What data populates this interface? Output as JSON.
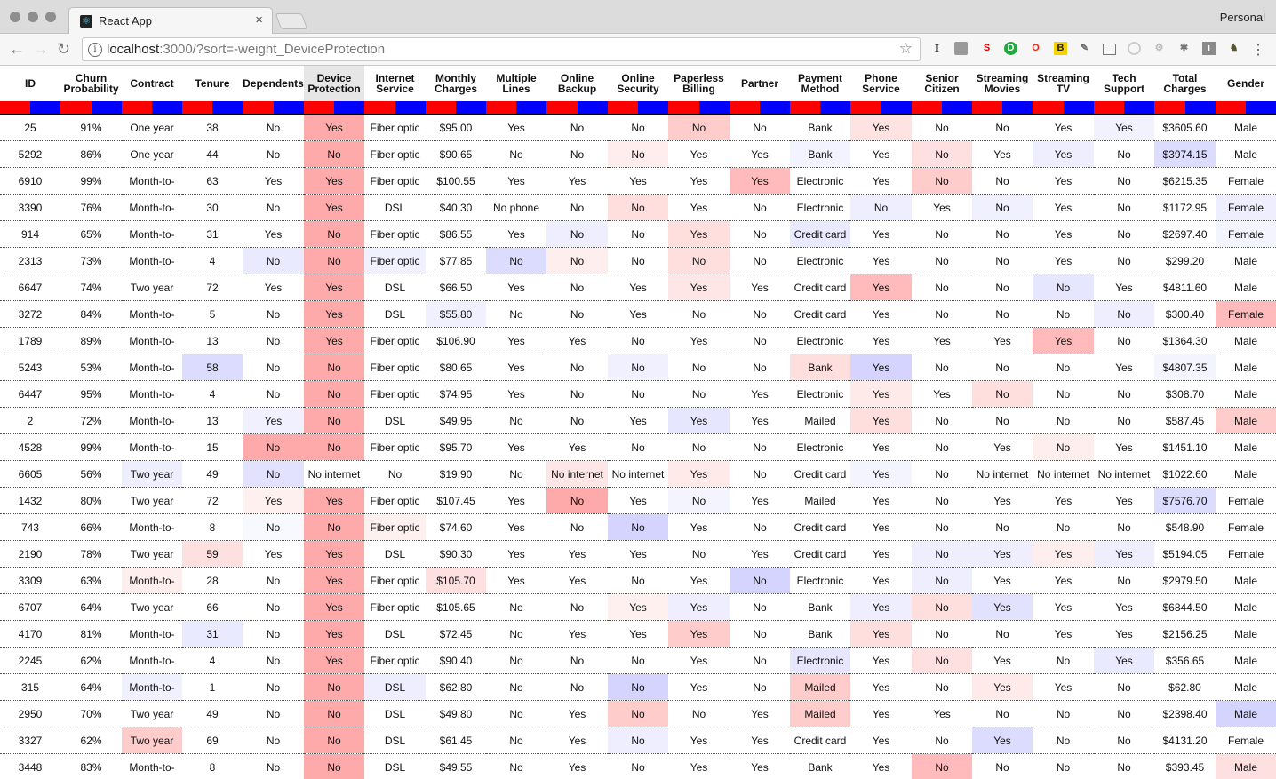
{
  "browser": {
    "tab_title": "React App",
    "profile_label": "Personal",
    "url_host": "localhost",
    "url_rest": ":3000/?sort=-weight_DeviceProtection",
    "colors": {
      "tab_bg": "#f6f6f6",
      "tabbar_bg": "#dcdcdc"
    }
  },
  "table": {
    "sorted_column": "Device Protection",
    "colorbar_colors": {
      "red": "#ff0000",
      "blue": "#0000ff"
    },
    "columns": [
      "ID",
      "Churn Probability",
      "Contract",
      "Tenure",
      "Dependents",
      "Device Protection",
      "Internet Service",
      "Monthly Charges",
      "Multiple Lines",
      "Online Backup",
      "Online Security",
      "Paperless Billing",
      "Partner",
      "Payment Method",
      "Phone Service",
      "Senior Citizen",
      "Streaming Movies",
      "Streaming TV",
      "Tech Support",
      "Total Charges",
      "Gender"
    ],
    "rows": [
      [
        "25",
        "91%",
        "One year",
        "38",
        "No",
        "Yes",
        "Fiber optic",
        "$95.00",
        "Yes",
        "No",
        "No",
        "No",
        "No",
        "Bank",
        "Yes",
        "No",
        "No",
        "Yes",
        "Yes",
        "$3605.60",
        "Male"
      ],
      [
        "5292",
        "86%",
        "One year",
        "44",
        "No",
        "No",
        "Fiber optic",
        "$90.65",
        "No",
        "No",
        "No",
        "Yes",
        "Yes",
        "Bank",
        "Yes",
        "No",
        "Yes",
        "Yes",
        "No",
        "$3974.15",
        "Male"
      ],
      [
        "6910",
        "99%",
        "Month-to-",
        "63",
        "Yes",
        "Yes",
        "Fiber optic",
        "$100.55",
        "Yes",
        "Yes",
        "Yes",
        "Yes",
        "Yes",
        "Electronic",
        "Yes",
        "No",
        "No",
        "Yes",
        "No",
        "$6215.35",
        "Female"
      ],
      [
        "3390",
        "76%",
        "Month-to-",
        "30",
        "No",
        "Yes",
        "DSL",
        "$40.30",
        "No phone",
        "No",
        "No",
        "Yes",
        "No",
        "Electronic",
        "No",
        "Yes",
        "No",
        "Yes",
        "No",
        "$1172.95",
        "Female"
      ],
      [
        "914",
        "65%",
        "Month-to-",
        "31",
        "Yes",
        "No",
        "Fiber optic",
        "$86.55",
        "Yes",
        "No",
        "No",
        "Yes",
        "No",
        "Credit card",
        "Yes",
        "No",
        "No",
        "Yes",
        "No",
        "$2697.40",
        "Female"
      ],
      [
        "2313",
        "73%",
        "Month-to-",
        "4",
        "No",
        "No",
        "Fiber optic",
        "$77.85",
        "No",
        "No",
        "No",
        "No",
        "No",
        "Electronic",
        "Yes",
        "No",
        "No",
        "Yes",
        "No",
        "$299.20",
        "Male"
      ],
      [
        "6647",
        "74%",
        "Two year",
        "72",
        "Yes",
        "Yes",
        "DSL",
        "$66.50",
        "Yes",
        "No",
        "Yes",
        "Yes",
        "Yes",
        "Credit card",
        "Yes",
        "No",
        "No",
        "No",
        "Yes",
        "$4811.60",
        "Male"
      ],
      [
        "3272",
        "84%",
        "Month-to-",
        "5",
        "No",
        "Yes",
        "DSL",
        "$55.80",
        "No",
        "No",
        "Yes",
        "No",
        "No",
        "Credit card",
        "Yes",
        "No",
        "No",
        "No",
        "No",
        "$300.40",
        "Female"
      ],
      [
        "1789",
        "89%",
        "Month-to-",
        "13",
        "No",
        "Yes",
        "Fiber optic",
        "$106.90",
        "Yes",
        "Yes",
        "No",
        "Yes",
        "No",
        "Electronic",
        "Yes",
        "Yes",
        "Yes",
        "Yes",
        "No",
        "$1364.30",
        "Male"
      ],
      [
        "5243",
        "53%",
        "Month-to-",
        "58",
        "No",
        "No",
        "Fiber optic",
        "$80.65",
        "Yes",
        "No",
        "No",
        "No",
        "No",
        "Bank",
        "Yes",
        "No",
        "No",
        "No",
        "Yes",
        "$4807.35",
        "Male"
      ],
      [
        "6447",
        "95%",
        "Month-to-",
        "4",
        "No",
        "No",
        "Fiber optic",
        "$74.95",
        "Yes",
        "No",
        "No",
        "No",
        "Yes",
        "Electronic",
        "Yes",
        "Yes",
        "No",
        "No",
        "No",
        "$308.70",
        "Male"
      ],
      [
        "2",
        "72%",
        "Month-to-",
        "13",
        "Yes",
        "No",
        "DSL",
        "$49.95",
        "No",
        "No",
        "Yes",
        "Yes",
        "Yes",
        "Mailed",
        "Yes",
        "No",
        "No",
        "No",
        "No",
        "$587.45",
        "Male"
      ],
      [
        "4528",
        "99%",
        "Month-to-",
        "15",
        "No",
        "No",
        "Fiber optic",
        "$95.70",
        "Yes",
        "Yes",
        "No",
        "No",
        "No",
        "Electronic",
        "Yes",
        "No",
        "Yes",
        "No",
        "Yes",
        "$1451.10",
        "Male"
      ],
      [
        "6605",
        "56%",
        "Two year",
        "49",
        "No",
        "No internet",
        "No",
        "$19.90",
        "No",
        "No internet",
        "No internet",
        "Yes",
        "No",
        "Credit card",
        "Yes",
        "No",
        "No internet",
        "No internet",
        "No internet",
        "$1022.60",
        "Male"
      ],
      [
        "1432",
        "80%",
        "Two year",
        "72",
        "Yes",
        "Yes",
        "Fiber optic",
        "$107.45",
        "Yes",
        "No",
        "Yes",
        "No",
        "Yes",
        "Mailed",
        "Yes",
        "No",
        "Yes",
        "Yes",
        "Yes",
        "$7576.70",
        "Female"
      ],
      [
        "743",
        "66%",
        "Month-to-",
        "8",
        "No",
        "No",
        "Fiber optic",
        "$74.60",
        "Yes",
        "No",
        "No",
        "Yes",
        "No",
        "Credit card",
        "Yes",
        "No",
        "No",
        "No",
        "No",
        "$548.90",
        "Female"
      ],
      [
        "2190",
        "78%",
        "Two year",
        "59",
        "Yes",
        "Yes",
        "DSL",
        "$90.30",
        "Yes",
        "Yes",
        "Yes",
        "No",
        "Yes",
        "Credit card",
        "Yes",
        "No",
        "Yes",
        "Yes",
        "Yes",
        "$5194.05",
        "Female"
      ],
      [
        "3309",
        "63%",
        "Month-to-",
        "28",
        "No",
        "Yes",
        "Fiber optic",
        "$105.70",
        "Yes",
        "Yes",
        "No",
        "Yes",
        "No",
        "Electronic",
        "Yes",
        "No",
        "Yes",
        "Yes",
        "No",
        "$2979.50",
        "Male"
      ],
      [
        "6707",
        "64%",
        "Two year",
        "66",
        "No",
        "Yes",
        "Fiber optic",
        "$105.65",
        "No",
        "No",
        "Yes",
        "Yes",
        "No",
        "Bank",
        "Yes",
        "No",
        "Yes",
        "Yes",
        "Yes",
        "$6844.50",
        "Male"
      ],
      [
        "4170",
        "81%",
        "Month-to-",
        "31",
        "No",
        "Yes",
        "DSL",
        "$72.45",
        "No",
        "Yes",
        "Yes",
        "Yes",
        "No",
        "Bank",
        "Yes",
        "No",
        "No",
        "Yes",
        "Yes",
        "$2156.25",
        "Male"
      ],
      [
        "2245",
        "62%",
        "Month-to-",
        "4",
        "No",
        "Yes",
        "Fiber optic",
        "$90.40",
        "No",
        "No",
        "No",
        "Yes",
        "No",
        "Electronic",
        "Yes",
        "No",
        "Yes",
        "No",
        "Yes",
        "$356.65",
        "Male"
      ],
      [
        "315",
        "64%",
        "Month-to-",
        "1",
        "No",
        "No",
        "DSL",
        "$62.80",
        "No",
        "No",
        "No",
        "Yes",
        "No",
        "Mailed",
        "Yes",
        "No",
        "Yes",
        "Yes",
        "No",
        "$62.80",
        "Male"
      ],
      [
        "2950",
        "70%",
        "Two year",
        "49",
        "No",
        "No",
        "DSL",
        "$49.80",
        "No",
        "Yes",
        "No",
        "No",
        "Yes",
        "Mailed",
        "Yes",
        "Yes",
        "No",
        "No",
        "No",
        "$2398.40",
        "Male"
      ],
      [
        "3327",
        "62%",
        "Two year",
        "69",
        "No",
        "No",
        "DSL",
        "$61.45",
        "No",
        "Yes",
        "No",
        "Yes",
        "Yes",
        "Credit card",
        "Yes",
        "No",
        "Yes",
        "No",
        "No",
        "$4131.20",
        "Female"
      ],
      [
        "3448",
        "83%",
        "Month-to-",
        "8",
        "No",
        "No",
        "DSL",
        "$49.55",
        "No",
        "Yes",
        "No",
        "Yes",
        "Yes",
        "Bank",
        "Yes",
        "No",
        "No",
        "No",
        "No",
        "$393.45",
        "Male"
      ]
    ],
    "cell_colors": [
      {
        "r": 0,
        "c": 5,
        "color": "#ffaaaa"
      },
      {
        "r": 0,
        "c": 11,
        "color": "#ffcccc"
      },
      {
        "r": 0,
        "c": 14,
        "color": "#ffe3e3"
      },
      {
        "r": 0,
        "c": 18,
        "color": "#f2f2ff"
      },
      {
        "r": 1,
        "c": 5,
        "color": "#ffaaaa"
      },
      {
        "r": 1,
        "c": 10,
        "color": "#ffecec"
      },
      {
        "r": 1,
        "c": 13,
        "color": "#f3f3ff"
      },
      {
        "r": 1,
        "c": 15,
        "color": "#ffe0e0"
      },
      {
        "r": 1,
        "c": 17,
        "color": "#eeeeff"
      },
      {
        "r": 1,
        "c": 19,
        "color": "#dcdcff"
      },
      {
        "r": 2,
        "c": 5,
        "color": "#ffaaaa"
      },
      {
        "r": 2,
        "c": 12,
        "color": "#ffbbbb"
      },
      {
        "r": 2,
        "c": 15,
        "color": "#ffcccc"
      },
      {
        "r": 3,
        "c": 5,
        "color": "#ffaaaa"
      },
      {
        "r": 3,
        "c": 10,
        "color": "#ffdede"
      },
      {
        "r": 3,
        "c": 14,
        "color": "#eeeeff"
      },
      {
        "r": 3,
        "c": 16,
        "color": "#f0f0ff"
      },
      {
        "r": 3,
        "c": 20,
        "color": "#eeeeff"
      },
      {
        "r": 4,
        "c": 5,
        "color": "#ffaaaa"
      },
      {
        "r": 4,
        "c": 9,
        "color": "#eeeeff"
      },
      {
        "r": 4,
        "c": 11,
        "color": "#ffdede"
      },
      {
        "r": 4,
        "c": 13,
        "color": "#eaeaff"
      },
      {
        "r": 4,
        "c": 20,
        "color": "#f4f4ff"
      },
      {
        "r": 5,
        "c": 4,
        "color": "#eaeaff"
      },
      {
        "r": 5,
        "c": 5,
        "color": "#ffaaaa"
      },
      {
        "r": 5,
        "c": 6,
        "color": "#f0f0ff"
      },
      {
        "r": 5,
        "c": 8,
        "color": "#dcdcff"
      },
      {
        "r": 5,
        "c": 9,
        "color": "#ffeeee"
      },
      {
        "r": 5,
        "c": 11,
        "color": "#ffdede"
      },
      {
        "r": 6,
        "c": 5,
        "color": "#ffaaaa"
      },
      {
        "r": 6,
        "c": 11,
        "color": "#ffe6e6"
      },
      {
        "r": 6,
        "c": 14,
        "color": "#ffbbbb"
      },
      {
        "r": 6,
        "c": 17,
        "color": "#e6e6ff"
      },
      {
        "r": 7,
        "c": 5,
        "color": "#ffaaaa"
      },
      {
        "r": 7,
        "c": 7,
        "color": "#f0f0ff"
      },
      {
        "r": 7,
        "c": 18,
        "color": "#eeeeff"
      },
      {
        "r": 7,
        "c": 20,
        "color": "#ffbbbb"
      },
      {
        "r": 8,
        "c": 5,
        "color": "#ffaaaa"
      },
      {
        "r": 8,
        "c": 17,
        "color": "#ffbbbb"
      },
      {
        "r": 9,
        "c": 3,
        "color": "#dcdcff"
      },
      {
        "r": 9,
        "c": 5,
        "color": "#ffaaaa"
      },
      {
        "r": 9,
        "c": 10,
        "color": "#f0f0ff"
      },
      {
        "r": 9,
        "c": 13,
        "color": "#ffdede"
      },
      {
        "r": 9,
        "c": 14,
        "color": "#d4d4ff"
      },
      {
        "r": 9,
        "c": 19,
        "color": "#f4f4ff"
      },
      {
        "r": 10,
        "c": 5,
        "color": "#ffaaaa"
      },
      {
        "r": 10,
        "c": 14,
        "color": "#ffeaea"
      },
      {
        "r": 10,
        "c": 16,
        "color": "#ffdede"
      },
      {
        "r": 11,
        "c": 4,
        "color": "#f0f0ff"
      },
      {
        "r": 11,
        "c": 5,
        "color": "#ffaaaa"
      },
      {
        "r": 11,
        "c": 11,
        "color": "#e6e6ff"
      },
      {
        "r": 11,
        "c": 14,
        "color": "#ffdede"
      },
      {
        "r": 11,
        "c": 20,
        "color": "#ffcccc"
      },
      {
        "r": 12,
        "c": 4,
        "color": "#ffaaaa"
      },
      {
        "r": 12,
        "c": 5,
        "color": "#ffaaaa"
      },
      {
        "r": 12,
        "c": 17,
        "color": "#ffeeee"
      },
      {
        "r": 13,
        "c": 2,
        "color": "#eeeeff"
      },
      {
        "r": 13,
        "c": 4,
        "color": "#e2e2ff"
      },
      {
        "r": 13,
        "c": 9,
        "color": "#ffe6e6"
      },
      {
        "r": 13,
        "c": 11,
        "color": "#ffeaea"
      },
      {
        "r": 13,
        "c": 14,
        "color": "#f4f4ff"
      },
      {
        "r": 14,
        "c": 4,
        "color": "#fff0f0"
      },
      {
        "r": 14,
        "c": 5,
        "color": "#ffaaaa"
      },
      {
        "r": 14,
        "c": 9,
        "color": "#ffaaaa"
      },
      {
        "r": 14,
        "c": 11,
        "color": "#f4f4ff"
      },
      {
        "r": 14,
        "c": 19,
        "color": "#dcdcff"
      },
      {
        "r": 15,
        "c": 4,
        "color": "#f8f8ff"
      },
      {
        "r": 15,
        "c": 5,
        "color": "#ffaaaa"
      },
      {
        "r": 15,
        "c": 6,
        "color": "#fff0f0"
      },
      {
        "r": 15,
        "c": 10,
        "color": "#d4d4ff"
      },
      {
        "r": 16,
        "c": 3,
        "color": "#ffe0e0"
      },
      {
        "r": 16,
        "c": 5,
        "color": "#ffaaaa"
      },
      {
        "r": 16,
        "c": 15,
        "color": "#eeeeff"
      },
      {
        "r": 16,
        "c": 16,
        "color": "#eeeeff"
      },
      {
        "r": 16,
        "c": 17,
        "color": "#ffeeee"
      },
      {
        "r": 16,
        "c": 18,
        "color": "#eeeeff"
      },
      {
        "r": 17,
        "c": 2,
        "color": "#ffeeee"
      },
      {
        "r": 17,
        "c": 5,
        "color": "#ffaaaa"
      },
      {
        "r": 17,
        "c": 7,
        "color": "#ffe0e0"
      },
      {
        "r": 17,
        "c": 12,
        "color": "#d4d4ff"
      },
      {
        "r": 17,
        "c": 15,
        "color": "#eeeeff"
      },
      {
        "r": 18,
        "c": 5,
        "color": "#ffaaaa"
      },
      {
        "r": 18,
        "c": 10,
        "color": "#fff0f0"
      },
      {
        "r": 18,
        "c": 11,
        "color": "#eeeeff"
      },
      {
        "r": 18,
        "c": 14,
        "color": "#eeeeff"
      },
      {
        "r": 18,
        "c": 15,
        "color": "#ffdede"
      },
      {
        "r": 18,
        "c": 16,
        "color": "#e2e2ff"
      },
      {
        "r": 19,
        "c": 3,
        "color": "#eaeaff"
      },
      {
        "r": 19,
        "c": 5,
        "color": "#ffaaaa"
      },
      {
        "r": 19,
        "c": 11,
        "color": "#ffcccc"
      },
      {
        "r": 19,
        "c": 14,
        "color": "#ffdede"
      },
      {
        "r": 20,
        "c": 5,
        "color": "#ffaaaa"
      },
      {
        "r": 20,
        "c": 13,
        "color": "#e6e6ff"
      },
      {
        "r": 20,
        "c": 15,
        "color": "#ffe0e0"
      },
      {
        "r": 20,
        "c": 18,
        "color": "#eaeaff"
      },
      {
        "r": 21,
        "c": 2,
        "color": "#f0f0ff"
      },
      {
        "r": 21,
        "c": 5,
        "color": "#ffaaaa"
      },
      {
        "r": 21,
        "c": 6,
        "color": "#eeeeff"
      },
      {
        "r": 21,
        "c": 10,
        "color": "#d4d4ff"
      },
      {
        "r": 21,
        "c": 13,
        "color": "#ffcccc"
      },
      {
        "r": 21,
        "c": 16,
        "color": "#ffeaea"
      },
      {
        "r": 22,
        "c": 5,
        "color": "#ffaaaa"
      },
      {
        "r": 22,
        "c": 10,
        "color": "#ffcccc"
      },
      {
        "r": 22,
        "c": 13,
        "color": "#ffcccc"
      },
      {
        "r": 22,
        "c": 20,
        "color": "#d4d4ff"
      },
      {
        "r": 23,
        "c": 2,
        "color": "#ffcccc"
      },
      {
        "r": 23,
        "c": 5,
        "color": "#ffaaaa"
      },
      {
        "r": 23,
        "c": 10,
        "color": "#eeeeff"
      },
      {
        "r": 23,
        "c": 16,
        "color": "#dcdcff"
      },
      {
        "r": 24,
        "c": 5,
        "color": "#ffaaaa"
      },
      {
        "r": 24,
        "c": 15,
        "color": "#ffbbbb"
      },
      {
        "r": 24,
        "c": 20,
        "color": "#ffe0e0"
      }
    ]
  }
}
